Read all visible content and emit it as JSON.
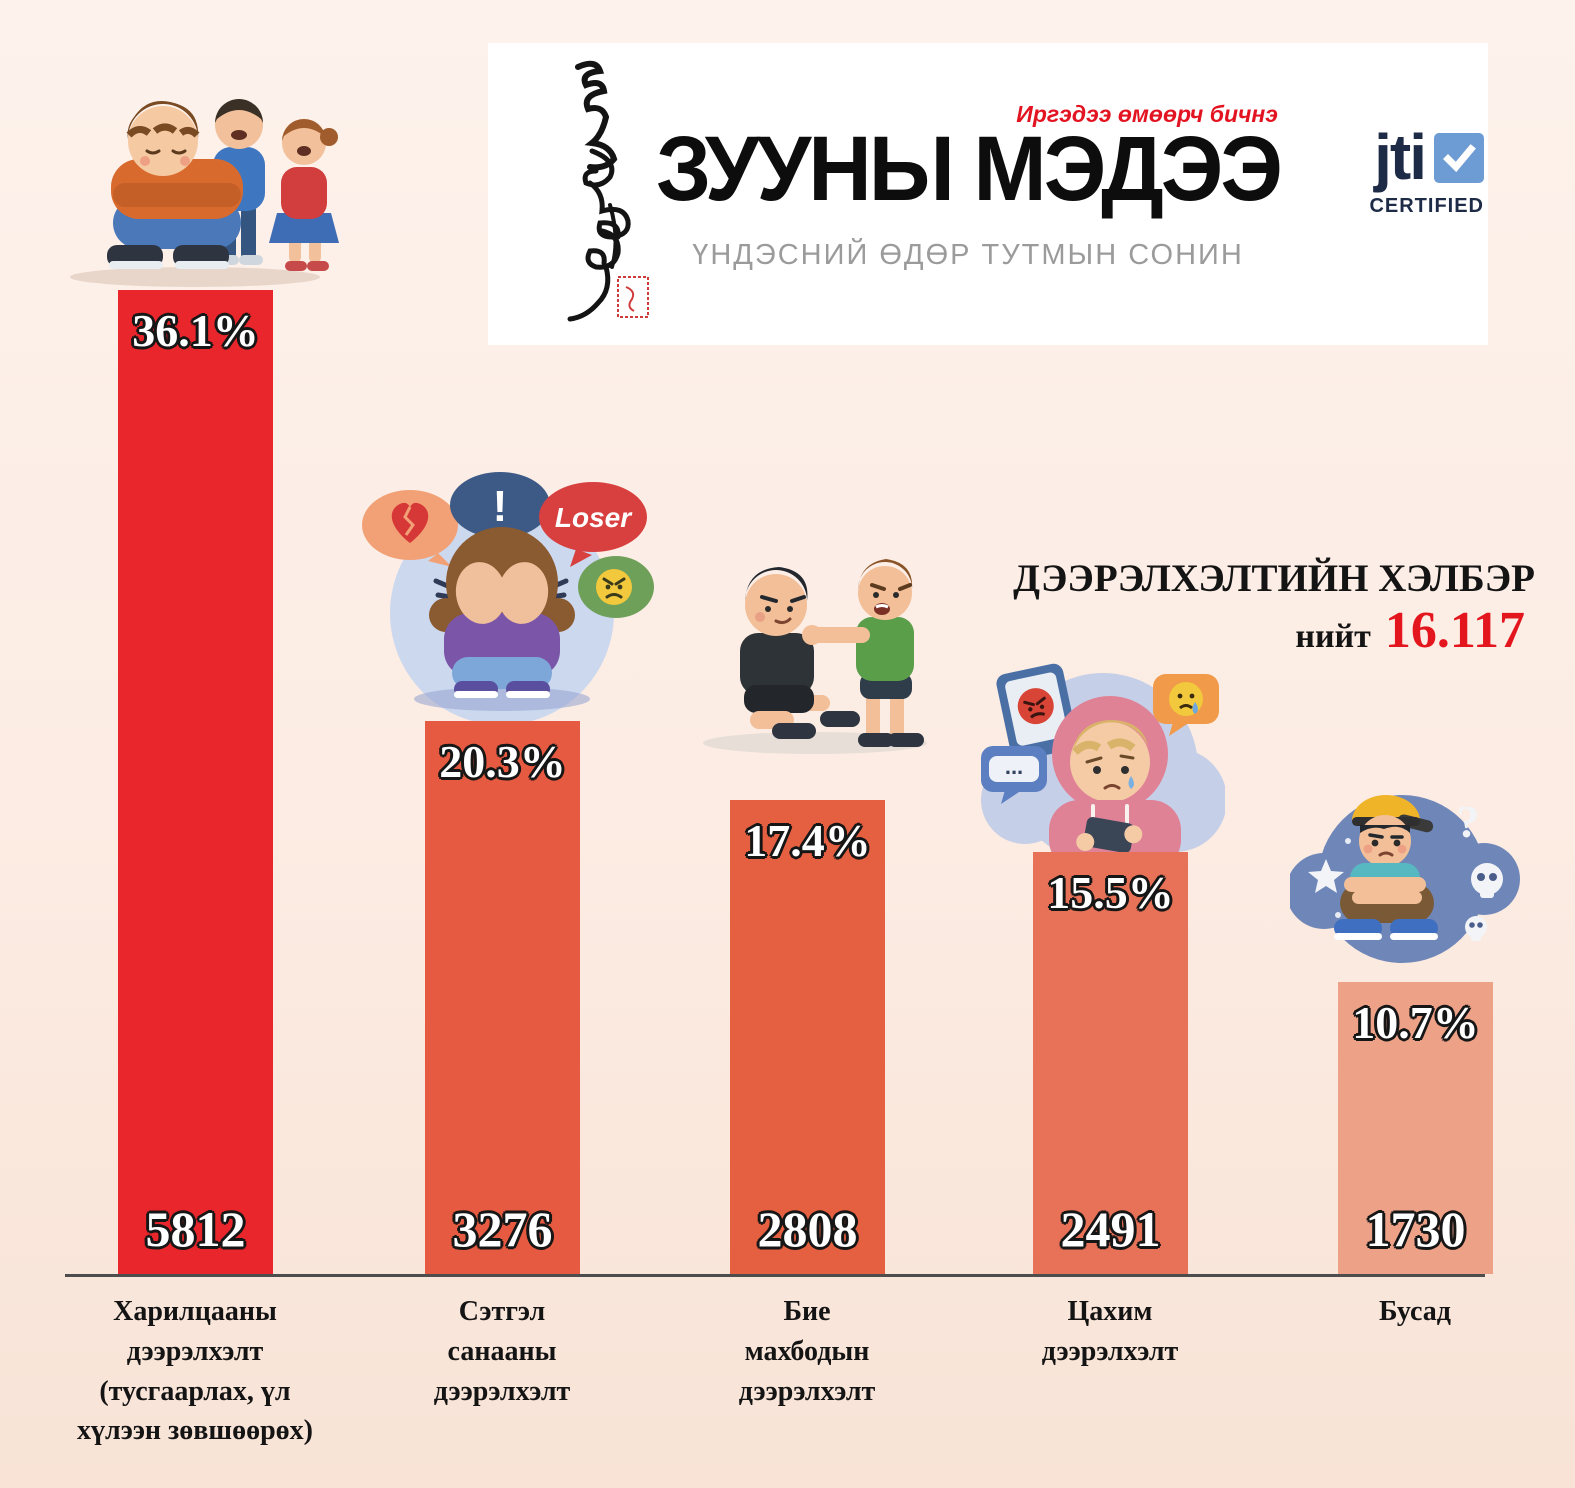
{
  "header": {
    "slogan": "Иргэдээ өмөөрч бичнэ",
    "title": "ЗУУНЫ МЭДЭЭ",
    "subtitle": "ҮНДЭСНИЙ ӨДӨР ТУТМЫН СОНИН",
    "jti": {
      "name": "jti",
      "certified": "CERTIFIED",
      "navy": "#1d2b47",
      "check_blue": "#6d9bd3"
    }
  },
  "chart_title": "ДЭЭРЭЛХЭЛТИЙН ХЭЛБЭР",
  "total": {
    "label": "нийт",
    "value": "16.117"
  },
  "chart_data": {
    "type": "bar",
    "title": "ДЭЭРЭЛХЭЛТИЙН ХЭЛБЭР",
    "total": 16117,
    "categories": [
      "Харилцааны дээрэлхэлт (тусгаарлах, үл хүлээн зөвшөөрөх)",
      "Сэтгэл санааны дээрэлхэлт",
      "Бие махбодын дээрэлхэлт",
      "Цахим дээрэлхэлт",
      "Бусад"
    ],
    "series": [
      {
        "name": "percent",
        "values": [
          36.1,
          20.3,
          17.4,
          15.5,
          10.7
        ]
      },
      {
        "name": "count",
        "values": [
          5812,
          3276,
          2808,
          2491,
          1730
        ]
      }
    ],
    "bar_colors": [
      "#e9262b",
      "#e55a40",
      "#e55f41",
      "#e87258",
      "#eda288"
    ],
    "xlabel": "",
    "ylabel": "",
    "grid": false,
    "legend": false,
    "value_label_color": "#ffffff",
    "background": "#fdf0e9"
  },
  "bars": [
    {
      "percent": "36.1%",
      "count": "5812",
      "label": "Харилцааны\nдээрэлхэлт\n(тусгаарлах, үл\nхүлээн зөвшөөрөх)"
    },
    {
      "percent": "20.3%",
      "count": "3276",
      "label": "Сэтгэл\nсанааны\nдээрэлхэлт"
    },
    {
      "percent": "17.4%",
      "count": "2808",
      "label": "Бие\nмахбодын\nдээрэлхэлт"
    },
    {
      "percent": "15.5%",
      "count": "2491",
      "label": "Цахим\nдээрэлхэлт"
    },
    {
      "percent": "10.7%",
      "count": "1730",
      "label": "Бусад"
    }
  ],
  "illustrations": {
    "exclusion": "sad boy ignored by two laughing kids",
    "emotional": "girl hiding face amid insult bubbles",
    "physical": "boy grabbing another boy",
    "cyber": "crying girl in hoodie reading phone",
    "other": "sad boy in cap with question mark and skulls",
    "loser_bubble": "Loser",
    "exclaim": "!",
    "question": "?",
    "typing_dots": "..."
  }
}
